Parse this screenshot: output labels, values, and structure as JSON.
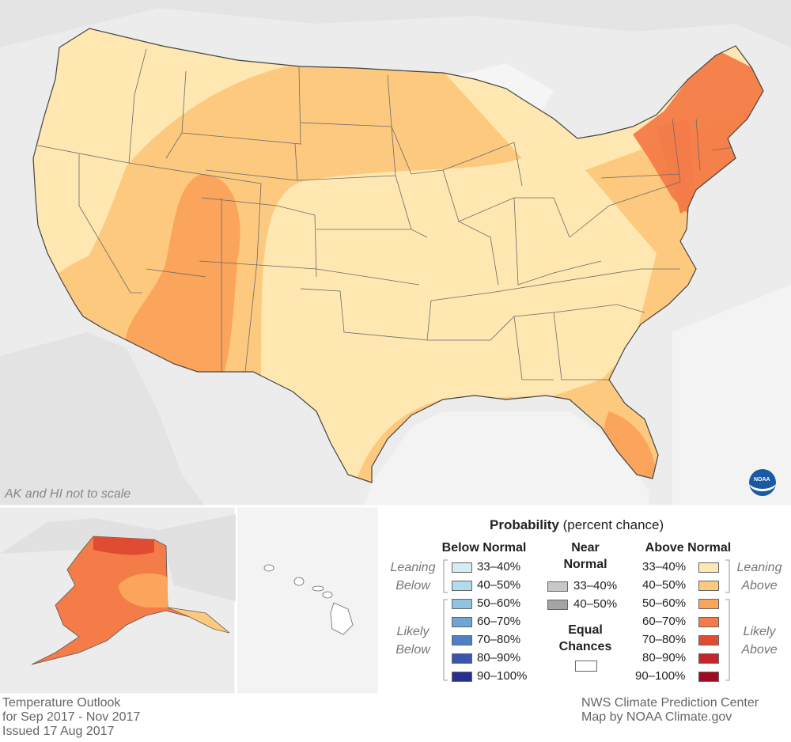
{
  "map_note": "AK and HI not to scale",
  "legend": {
    "title_bold": "Probability",
    "title_rest": " (percent chance)",
    "below_header": "Below Normal",
    "near_header_line1": "Near",
    "near_header_line2": "Normal",
    "above_header": "Above Normal",
    "leaning_below": [
      "Leaning",
      "Below"
    ],
    "likely_below": [
      "Likely",
      "Below"
    ],
    "leaning_above": [
      "Leaning",
      "Above"
    ],
    "likely_above": [
      "Likely",
      "Above"
    ],
    "equal_line1": "Equal",
    "equal_line2": "Chances",
    "below": [
      {
        "label": "33–40%",
        "color": "#d4ecf3"
      },
      {
        "label": "40–50%",
        "color": "#b3dceb"
      },
      {
        "label": "50–60%",
        "color": "#8ec4e0"
      },
      {
        "label": "60–70%",
        "color": "#6ea5d4"
      },
      {
        "label": "70–80%",
        "color": "#4f7fc4"
      },
      {
        "label": "80–90%",
        "color": "#3a55ae"
      },
      {
        "label": "90–100%",
        "color": "#272f8f"
      }
    ],
    "near": [
      {
        "label": "33–40%",
        "color": "#c8c8c8"
      },
      {
        "label": "40–50%",
        "color": "#a4a4a4"
      }
    ],
    "above": [
      {
        "label": "33–40%",
        "color": "#fee7b0"
      },
      {
        "label": "40–50%",
        "color": "#fdc97e"
      },
      {
        "label": "50–60%",
        "color": "#fba45c"
      },
      {
        "label": "60–70%",
        "color": "#f47c48"
      },
      {
        "label": "70–80%",
        "color": "#e04c32"
      },
      {
        "label": "80–90%",
        "color": "#c4252a"
      },
      {
        "label": "90–100%",
        "color": "#a00a22"
      }
    ],
    "equal_color": "#ffffff"
  },
  "footer_left": [
    "Temperature Outlook",
    "for Sep 2017 - Nov 2017",
    "Issued 17 Aug 2017"
  ],
  "footer_right": [
    "NWS Climate Prediction Center",
    "Map by NOAA Climate.gov"
  ],
  "logo_text": "NOAA"
}
